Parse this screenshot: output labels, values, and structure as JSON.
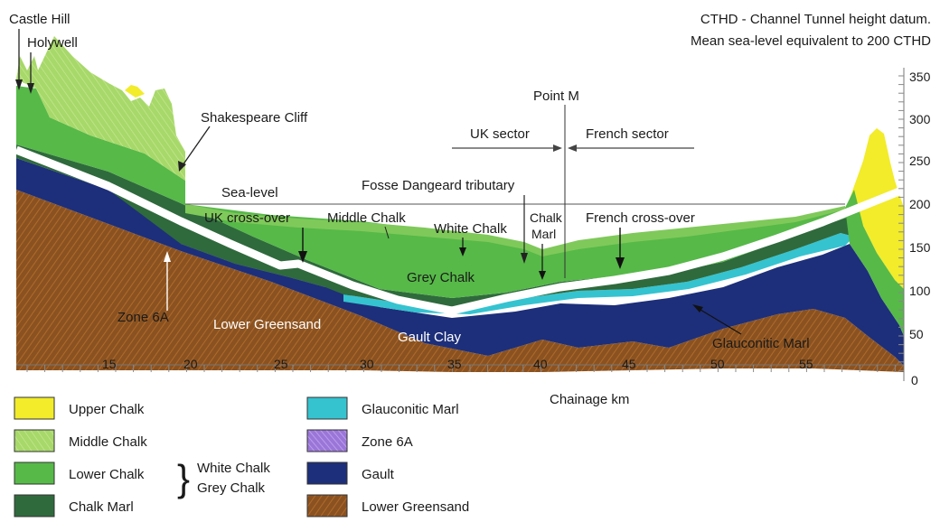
{
  "note": {
    "line1": "CTHD - Channel Tunnel height datum.",
    "line2": "Mean sea-level equivalent to 200 CTHD"
  },
  "places": {
    "castle_hill": "Castle Hill",
    "holywell": "Holywell",
    "shakespeare_cliff": "Shakespeare Cliff",
    "point_m": "Point M",
    "uk_sector": "UK sector",
    "french_sector": "French sector",
    "fosse": "Fosse Dangeard tributary",
    "sea_level": "Sea-level",
    "uk_crossover": "UK cross-over",
    "french_crossover": "French cross-over",
    "zone6a": "Zone 6A",
    "chalk_marl_1": "Chalk",
    "chalk_marl_2": "Marl"
  },
  "strata": {
    "middle_chalk": "Middle Chalk",
    "white_chalk": "White Chalk",
    "grey_chalk": "Grey Chalk",
    "lower_greensand": "Lower Greensand",
    "gault_clay": "Gault Clay",
    "glauconitic_marl": "Glauconitic Marl"
  },
  "axes": {
    "x_label": "Chainage km",
    "x_ticks": [
      "15",
      "20",
      "25",
      "30",
      "35",
      "40",
      "45",
      "50",
      "55"
    ],
    "y_ticks": [
      "350",
      "300",
      "250",
      "200",
      "150",
      "100",
      "50",
      "0"
    ]
  },
  "legend": {
    "upper_chalk": "Upper Chalk",
    "middle_chalk": "Middle Chalk",
    "lower_chalk": "Lower Chalk",
    "chalk_marl": "Chalk Marl",
    "glauconitic_marl": "Glauconitic Marl",
    "zone6a": "Zone 6A",
    "gault": "Gault",
    "lower_greensand": "Lower Greensand",
    "brace_1": "White Chalk",
    "brace_2": "Grey Chalk"
  },
  "colors": {
    "upper_chalk": "#f2ec2a",
    "middle_chalk": "#a7d86a",
    "lower_chalk": "#56b948",
    "chalk_marl": "#2f6a3c",
    "glauconitic_marl": "#35c3d0",
    "zone6a": "#9a76d8",
    "gault": "#1d2f7a",
    "lower_greensand": "#8a5220"
  }
}
